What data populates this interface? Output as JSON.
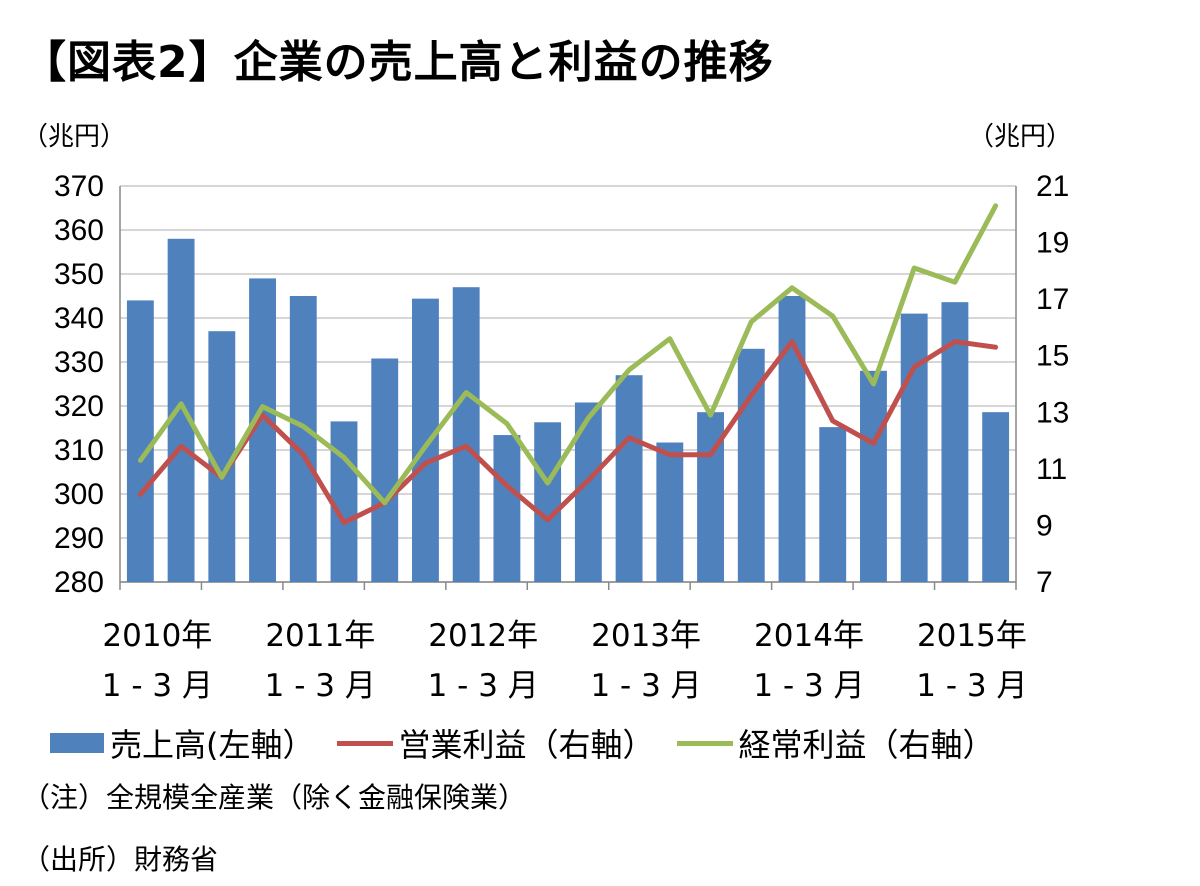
{
  "title": "【図表2】企業の売上高と利益の推移",
  "left_unit": "（兆円）",
  "right_unit": "（兆円）",
  "notes": {
    "note": "（注）全規模全産業（除く金融保険業）",
    "source": "（出所）財務省"
  },
  "colors": {
    "bar": "#4f81bd",
    "operating": "#c0504d",
    "ordinary": "#9bbb59",
    "grid": "#c8c8c8"
  },
  "legend": {
    "sales": "売上高(左軸）",
    "operating": "営業利益（右軸）",
    "ordinary": "経常利益（右軸）"
  },
  "chart_data": {
    "type": "bar",
    "title": "【図表2】企業の売上高と利益の推移",
    "ylabel": "（兆円）",
    "y2label": "（兆円）",
    "ylim": [
      280,
      370
    ],
    "y_ticks": [
      280,
      290,
      300,
      310,
      320,
      330,
      340,
      350,
      360,
      370
    ],
    "y2lim": [
      7,
      21
    ],
    "y2_ticks": [
      7,
      9,
      11,
      13,
      15,
      17,
      19,
      21
    ],
    "grid": true,
    "legend_position": "bottom",
    "x_labels": [
      {
        "index": 0,
        "line1": "2010年",
        "line2": "1 - 3 月"
      },
      {
        "index": 4,
        "line1": "2011年",
        "line2": "1 - 3 月"
      },
      {
        "index": 8,
        "line1": "2012年",
        "line2": "1 - 3 月"
      },
      {
        "index": 12,
        "line1": "2013年",
        "line2": "1 - 3 月"
      },
      {
        "index": 16,
        "line1": "2014年",
        "line2": "1 - 3 月"
      },
      {
        "index": 20,
        "line1": "2015年",
        "line2": "1 - 3 月"
      }
    ],
    "series": [
      {
        "name": "売上高(左軸）",
        "type": "bar",
        "axis": "left",
        "values": [
          344,
          358,
          337,
          349,
          345,
          316.5,
          330.8,
          344.4,
          347,
          313.4,
          316.3,
          320.8,
          327,
          311.7,
          318.6,
          333,
          345,
          315.2,
          328,
          341,
          343.6,
          318.6
        ]
      },
      {
        "name": "営業利益（右軸）",
        "type": "line",
        "axis": "right",
        "values": [
          10.1,
          11.8,
          10.7,
          12.9,
          11.5,
          9.1,
          9.8,
          11.2,
          11.8,
          10.4,
          9.2,
          10.6,
          12.1,
          11.5,
          11.5,
          13.6,
          15.5,
          12.7,
          11.9,
          14.6,
          15.5,
          15.3
        ]
      },
      {
        "name": "経常利益（右軸）",
        "type": "line",
        "axis": "right",
        "values": [
          11.3,
          13.3,
          10.7,
          13.2,
          12.5,
          11.4,
          9.8,
          11.8,
          13.7,
          12.6,
          10.5,
          12.8,
          14.5,
          15.6,
          12.9,
          16.2,
          17.4,
          16.4,
          14.0,
          18.1,
          17.6,
          20.3
        ]
      }
    ]
  }
}
